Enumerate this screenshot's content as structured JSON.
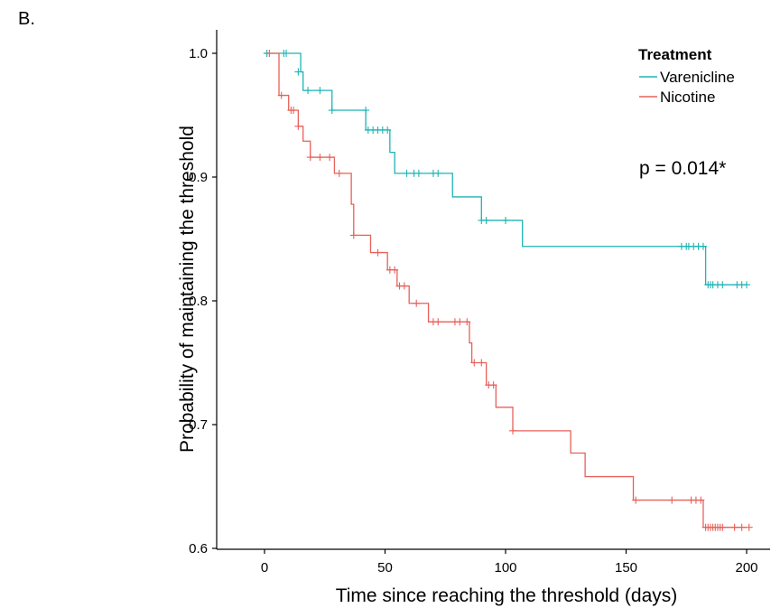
{
  "panel_label": "B.",
  "chart_data": {
    "type": "line",
    "subtype": "kaplan-meier step",
    "xlabel": "Time since reaching the threshold (days)",
    "ylabel": "Probability of maintaining the threshold",
    "xlim": [
      -5,
      205
    ],
    "ylim": [
      0.595,
      1.02
    ],
    "x_ticks": [
      0,
      50,
      100,
      150,
      200
    ],
    "y_ticks": [
      0.6,
      0.7,
      0.8,
      0.9,
      1.0
    ],
    "x_tick_labels": [
      "0",
      "50",
      "100",
      "150",
      "200"
    ],
    "y_tick_labels": [
      "0.6",
      "0.7",
      "0.8",
      "0.9",
      "1.0"
    ],
    "grid": false,
    "legend": {
      "title": "Treatment",
      "placement": "top-right"
    },
    "annotation": "p = 0.014*",
    "series": [
      {
        "name": "Varenicline",
        "color": "#1FB3B3",
        "steps": [
          [
            0,
            1.0
          ],
          [
            15,
            0.985
          ],
          [
            16,
            0.97
          ],
          [
            28,
            0.954
          ],
          [
            42,
            0.938
          ],
          [
            52,
            0.92
          ],
          [
            54,
            0.903
          ],
          [
            78,
            0.884
          ],
          [
            90,
            0.865
          ],
          [
            107,
            0.844
          ],
          [
            183,
            0.813
          ],
          [
            200,
            0.813
          ]
        ],
        "censored": [
          [
            1,
            1.0
          ],
          [
            8,
            1.0
          ],
          [
            9,
            1.0
          ],
          [
            14,
            0.985
          ],
          [
            18,
            0.97
          ],
          [
            23,
            0.97
          ],
          [
            28,
            0.954
          ],
          [
            42,
            0.954
          ],
          [
            43,
            0.938
          ],
          [
            45,
            0.938
          ],
          [
            47,
            0.938
          ],
          [
            49,
            0.938
          ],
          [
            51,
            0.938
          ],
          [
            59,
            0.903
          ],
          [
            62,
            0.903
          ],
          [
            64,
            0.903
          ],
          [
            70,
            0.903
          ],
          [
            72,
            0.903
          ],
          [
            90,
            0.865
          ],
          [
            92,
            0.865
          ],
          [
            100,
            0.865
          ],
          [
            173,
            0.844
          ],
          [
            175,
            0.844
          ],
          [
            176,
            0.844
          ],
          [
            178,
            0.844
          ],
          [
            180,
            0.844
          ],
          [
            182,
            0.844
          ],
          [
            184,
            0.813
          ],
          [
            185,
            0.813
          ],
          [
            186,
            0.813
          ],
          [
            188,
            0.813
          ],
          [
            190,
            0.813
          ],
          [
            196,
            0.813
          ],
          [
            198,
            0.813
          ],
          [
            200,
            0.813
          ]
        ]
      },
      {
        "name": "Nicotine",
        "color": "#E8605A",
        "steps": [
          [
            0,
            1.0
          ],
          [
            6,
            0.966
          ],
          [
            10,
            0.954
          ],
          [
            14,
            0.941
          ],
          [
            16,
            0.929
          ],
          [
            19,
            0.916
          ],
          [
            29,
            0.903
          ],
          [
            36,
            0.878
          ],
          [
            37,
            0.853
          ],
          [
            44,
            0.839
          ],
          [
            51,
            0.825
          ],
          [
            55,
            0.812
          ],
          [
            60,
            0.798
          ],
          [
            68,
            0.783
          ],
          [
            85,
            0.766
          ],
          [
            86,
            0.75
          ],
          [
            92,
            0.732
          ],
          [
            96,
            0.714
          ],
          [
            103,
            0.695
          ],
          [
            127,
            0.677
          ],
          [
            133,
            0.658
          ],
          [
            153,
            0.639
          ],
          [
            182,
            0.617
          ],
          [
            200,
            0.617
          ]
        ],
        "censored": [
          [
            2,
            1.0
          ],
          [
            7,
            0.966
          ],
          [
            11,
            0.954
          ],
          [
            12,
            0.954
          ],
          [
            14,
            0.941
          ],
          [
            19,
            0.916
          ],
          [
            23,
            0.916
          ],
          [
            27,
            0.916
          ],
          [
            31,
            0.903
          ],
          [
            37,
            0.853
          ],
          [
            47,
            0.839
          ],
          [
            52,
            0.825
          ],
          [
            54,
            0.825
          ],
          [
            56,
            0.812
          ],
          [
            58,
            0.812
          ],
          [
            63,
            0.798
          ],
          [
            70,
            0.783
          ],
          [
            72,
            0.783
          ],
          [
            79,
            0.783
          ],
          [
            81,
            0.783
          ],
          [
            84,
            0.783
          ],
          [
            87,
            0.75
          ],
          [
            90,
            0.75
          ],
          [
            93,
            0.732
          ],
          [
            95,
            0.732
          ],
          [
            103,
            0.695
          ],
          [
            154,
            0.639
          ],
          [
            169,
            0.639
          ],
          [
            177,
            0.639
          ],
          [
            179,
            0.639
          ],
          [
            181,
            0.639
          ],
          [
            183,
            0.617
          ],
          [
            184,
            0.617
          ],
          [
            185,
            0.617
          ],
          [
            186,
            0.617
          ],
          [
            187,
            0.617
          ],
          [
            188,
            0.617
          ],
          [
            189,
            0.617
          ],
          [
            190,
            0.617
          ],
          [
            195,
            0.617
          ],
          [
            198,
            0.617
          ],
          [
            201,
            0.617
          ]
        ]
      }
    ]
  }
}
